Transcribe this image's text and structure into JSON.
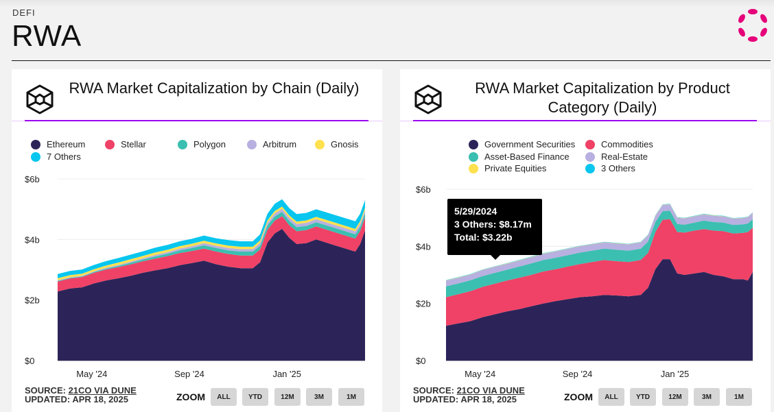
{
  "page": {
    "kicker": "DEFI",
    "title": "RWA",
    "brand_logo": "polkadot-style-logo",
    "brand_color": "#e6007a"
  },
  "colors": {
    "accent_rule": "#9b00f0",
    "series": [
      "#2c2459",
      "#ef4266",
      "#3bbfb0",
      "#b8b0e0",
      "#fde14e",
      "#08c6ee"
    ]
  },
  "footer": {
    "source_prefix": "SOURCE: ",
    "source_link": "21CO VIA DUNE",
    "updated": "UPDATED: APR 18, 2025",
    "zoom_label": "ZOOM",
    "zoom_buttons": [
      "ALL",
      "YTD",
      "12M",
      "3M",
      "1M"
    ]
  },
  "tooltip": {
    "date": "5/29/2024",
    "line1": "3 Others: $8.17m",
    "line2": "Total: $3.22b"
  },
  "chart_data": [
    {
      "type": "area",
      "stacked": true,
      "title": "RWA Market Capitalization by Chain (Daily)",
      "icon": "cube-icon",
      "xlabel": "",
      "ylabel": "",
      "ylim": [
        0,
        6
      ],
      "y_unit": "billions USD",
      "y_ticks": [
        "$0",
        "$2b",
        "$4b",
        "$6b"
      ],
      "y_tick_values": [
        0,
        2,
        4,
        6
      ],
      "x_ticks": [
        "May '24",
        "Sep '24",
        "Jan '25"
      ],
      "x_tick_months": [
        1.4,
        5.4,
        9.4
      ],
      "x_range_months": [
        0,
        12.6
      ],
      "legend_position": "top-left",
      "legend": [
        "Ethereum",
        "Stellar",
        "Polygon",
        "Arbitrum",
        "Gnosis",
        "7 Others"
      ],
      "x": [
        0,
        0.5,
        1,
        1.5,
        2,
        2.5,
        3,
        3.5,
        4,
        4.5,
        5,
        5.5,
        6,
        6.5,
        7,
        7.5,
        8,
        8.3,
        8.6,
        8.9,
        9.2,
        9.5,
        9.8,
        10.2,
        10.6,
        11,
        11.4,
        11.8,
        12.2,
        12.4,
        12.6
      ],
      "series": [
        {
          "name": "Ethereum",
          "values": [
            2.28,
            2.38,
            2.42,
            2.55,
            2.65,
            2.72,
            2.8,
            2.9,
            2.98,
            3.05,
            3.15,
            3.22,
            3.3,
            3.18,
            3.1,
            3.05,
            3.05,
            3.25,
            3.9,
            4.2,
            4.35,
            4.05,
            3.85,
            3.88,
            4.0,
            3.9,
            3.8,
            3.7,
            3.6,
            3.85,
            4.3
          ]
        },
        {
          "name": "Stellar",
          "values": [
            0.33,
            0.33,
            0.34,
            0.35,
            0.36,
            0.37,
            0.38,
            0.38,
            0.39,
            0.4,
            0.4,
            0.4,
            0.4,
            0.42,
            0.42,
            0.42,
            0.42,
            0.42,
            0.42,
            0.42,
            0.42,
            0.42,
            0.42,
            0.43,
            0.43,
            0.43,
            0.43,
            0.43,
            0.43,
            0.43,
            0.43
          ]
        },
        {
          "name": "Polygon",
          "values": [
            0.02,
            0.02,
            0.02,
            0.03,
            0.03,
            0.04,
            0.05,
            0.06,
            0.07,
            0.08,
            0.09,
            0.1,
            0.11,
            0.12,
            0.12,
            0.13,
            0.13,
            0.13,
            0.14,
            0.14,
            0.14,
            0.14,
            0.14,
            0.14,
            0.14,
            0.14,
            0.14,
            0.14,
            0.14,
            0.14,
            0.14
          ]
        },
        {
          "name": "Arbitrum",
          "values": [
            0.02,
            0.02,
            0.02,
            0.02,
            0.03,
            0.03,
            0.04,
            0.04,
            0.05,
            0.05,
            0.06,
            0.06,
            0.07,
            0.07,
            0.08,
            0.08,
            0.08,
            0.09,
            0.09,
            0.1,
            0.1,
            0.1,
            0.1,
            0.1,
            0.1,
            0.1,
            0.1,
            0.1,
            0.1,
            0.1,
            0.1
          ]
        },
        {
          "name": "Gnosis",
          "values": [
            0.07,
            0.07,
            0.07,
            0.07,
            0.07,
            0.08,
            0.08,
            0.08,
            0.08,
            0.08,
            0.08,
            0.08,
            0.08,
            0.08,
            0.08,
            0.08,
            0.08,
            0.08,
            0.08,
            0.08,
            0.08,
            0.08,
            0.08,
            0.08,
            0.08,
            0.08,
            0.08,
            0.08,
            0.08,
            0.08,
            0.08
          ]
        },
        {
          "name": "7 Others",
          "values": [
            0.14,
            0.14,
            0.14,
            0.14,
            0.15,
            0.15,
            0.15,
            0.15,
            0.16,
            0.16,
            0.16,
            0.16,
            0.17,
            0.17,
            0.18,
            0.18,
            0.18,
            0.2,
            0.22,
            0.24,
            0.24,
            0.24,
            0.25,
            0.25,
            0.25,
            0.25,
            0.25,
            0.25,
            0.25,
            0.25,
            0.25
          ]
        }
      ]
    },
    {
      "type": "area",
      "stacked": true,
      "title": "RWA Market Capitalization by Product Category (Daily)",
      "icon": "cube-icon",
      "xlabel": "",
      "ylabel": "",
      "ylim": [
        0,
        6
      ],
      "y_unit": "billions USD",
      "y_ticks": [
        "$0",
        "$2b",
        "$4b",
        "$6b"
      ],
      "y_tick_values": [
        0,
        2,
        4,
        6
      ],
      "x_ticks": [
        "May '24",
        "Sep '24",
        "Jan '25"
      ],
      "x_tick_months": [
        1.4,
        5.4,
        9.4
      ],
      "x_range_months": [
        0,
        12.6
      ],
      "legend_position": "top-center",
      "legend": [
        "Government Securities",
        "Commodities",
        "Asset-Based Finance",
        "Real-Estate",
        "Private Equities",
        "3 Others"
      ],
      "x": [
        0,
        0.5,
        1,
        1.5,
        2,
        2.5,
        3,
        3.5,
        4,
        4.5,
        5,
        5.5,
        6,
        6.5,
        7,
        7.5,
        8,
        8.3,
        8.6,
        8.9,
        9.2,
        9.5,
        9.8,
        10.2,
        10.6,
        11,
        11.4,
        11.8,
        12.2,
        12.4,
        12.6
      ],
      "series": [
        {
          "name": "Government Securities",
          "values": [
            1.22,
            1.3,
            1.38,
            1.52,
            1.62,
            1.72,
            1.8,
            1.9,
            2.0,
            2.08,
            2.15,
            2.22,
            2.25,
            2.3,
            2.28,
            2.25,
            2.3,
            2.55,
            3.2,
            3.55,
            3.55,
            3.05,
            3.0,
            3.05,
            3.1,
            3.0,
            2.95,
            2.85,
            2.85,
            2.8,
            3.1
          ]
        },
        {
          "name": "Commodities",
          "values": [
            1.0,
            1.02,
            1.05,
            1.06,
            1.07,
            1.08,
            1.1,
            1.1,
            1.12,
            1.12,
            1.14,
            1.16,
            1.2,
            1.22,
            1.2,
            1.2,
            1.22,
            1.22,
            1.3,
            1.38,
            1.4,
            1.45,
            1.48,
            1.5,
            1.5,
            1.55,
            1.58,
            1.6,
            1.62,
            1.7,
            1.55
          ]
        },
        {
          "name": "Asset-Based Finance",
          "values": [
            0.38,
            0.38,
            0.38,
            0.38,
            0.38,
            0.38,
            0.39,
            0.4,
            0.4,
            0.4,
            0.4,
            0.4,
            0.4,
            0.4,
            0.4,
            0.4,
            0.4,
            0.4,
            0.35,
            0.3,
            0.3,
            0.28,
            0.28,
            0.28,
            0.3,
            0.3,
            0.3,
            0.3,
            0.3,
            0.3,
            0.3
          ]
        },
        {
          "name": "Real-Estate",
          "values": [
            0.2,
            0.2,
            0.2,
            0.21,
            0.21,
            0.21,
            0.21,
            0.22,
            0.22,
            0.22,
            0.22,
            0.22,
            0.22,
            0.22,
            0.22,
            0.22,
            0.22,
            0.22,
            0.22,
            0.22,
            0.22,
            0.22,
            0.22,
            0.22,
            0.22,
            0.22,
            0.22,
            0.22,
            0.22,
            0.22,
            0.22
          ]
        },
        {
          "name": "Private Equities",
          "values": [
            0.01,
            0.01,
            0.01,
            0.01,
            0.01,
            0.01,
            0.01,
            0.01,
            0.01,
            0.01,
            0.01,
            0.01,
            0.01,
            0.01,
            0.01,
            0.01,
            0.01,
            0.01,
            0.01,
            0.01,
            0.01,
            0.01,
            0.01,
            0.01,
            0.01,
            0.01,
            0.01,
            0.01,
            0.01,
            0.01,
            0.01
          ]
        },
        {
          "name": "3 Others",
          "values": [
            0.01,
            0.01,
            0.01,
            0.01,
            0.01,
            0.01,
            0.01,
            0.01,
            0.01,
            0.01,
            0.01,
            0.01,
            0.01,
            0.01,
            0.01,
            0.01,
            0.01,
            0.01,
            0.01,
            0.01,
            0.01,
            0.01,
            0.01,
            0.01,
            0.01,
            0.01,
            0.01,
            0.01,
            0.01,
            0.01,
            0.01
          ]
        }
      ]
    }
  ]
}
